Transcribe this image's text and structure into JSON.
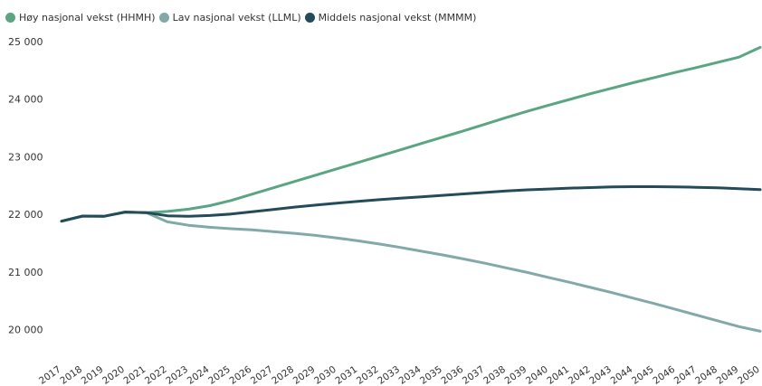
{
  "chart_data": {
    "type": "line",
    "title": "",
    "xlabel": "",
    "ylabel": "",
    "ylim": [
      19800,
      25050
    ],
    "y_ticks": [
      20000,
      21000,
      22000,
      23000,
      24000,
      25000
    ],
    "y_tick_labels": [
      "20 000",
      "21 000",
      "22 000",
      "23 000",
      "24 000",
      "25 000"
    ],
    "x": [
      2017,
      2018,
      2019,
      2020,
      2021,
      2022,
      2023,
      2024,
      2025,
      2026,
      2027,
      2028,
      2029,
      2030,
      2031,
      2032,
      2033,
      2034,
      2035,
      2036,
      2037,
      2038,
      2039,
      2040,
      2041,
      2042,
      2043,
      2044,
      2045,
      2046,
      2047,
      2048,
      2049,
      2050
    ],
    "x_tick_labels": [
      "2017",
      "2018",
      "2019",
      "2020",
      "2021",
      "2022",
      "2023",
      "2024",
      "2025",
      "2026",
      "2027",
      "2028",
      "2029",
      "2030",
      "2031",
      "2032",
      "2033",
      "2034",
      "2035",
      "2036",
      "2037",
      "2038",
      "2039",
      "2040",
      "2041",
      "2042",
      "2043",
      "2044",
      "2045",
      "2046",
      "2047",
      "2048",
      "2049",
      "2050"
    ],
    "grid": false,
    "legend_position": "top-left",
    "series": [
      {
        "name": "Høy nasjonal vekst (HHMH)",
        "color": "#5aa582",
        "values": [
          21880,
          21970,
          21965,
          22040,
          22030,
          22050,
          22090,
          22150,
          22240,
          22350,
          22460,
          22570,
          22680,
          22790,
          22900,
          23010,
          23120,
          23230,
          23340,
          23450,
          23565,
          23680,
          23790,
          23895,
          23995,
          24095,
          24190,
          24285,
          24375,
          24465,
          24550,
          24640,
          24730,
          24900
        ]
      },
      {
        "name": "Lav nasjonal vekst (LLML)",
        "color": "#82a9a8",
        "values": [
          21880,
          21970,
          21965,
          22040,
          22030,
          21870,
          21810,
          21775,
          21750,
          21730,
          21700,
          21670,
          21635,
          21590,
          21540,
          21485,
          21425,
          21360,
          21295,
          21225,
          21150,
          21070,
          20990,
          20905,
          20820,
          20730,
          20640,
          20545,
          20450,
          20350,
          20250,
          20150,
          20050,
          19970
        ]
      },
      {
        "name": "Middels nasjonal vekst (MMMM)",
        "color": "#244b5a",
        "values": [
          21880,
          21970,
          21965,
          22040,
          22030,
          21975,
          21965,
          21980,
          22005,
          22045,
          22085,
          22125,
          22160,
          22195,
          22225,
          22255,
          22280,
          22305,
          22330,
          22355,
          22380,
          22405,
          22425,
          22440,
          22455,
          22465,
          22475,
          22480,
          22480,
          22478,
          22470,
          22460,
          22445,
          22430
        ]
      }
    ]
  }
}
